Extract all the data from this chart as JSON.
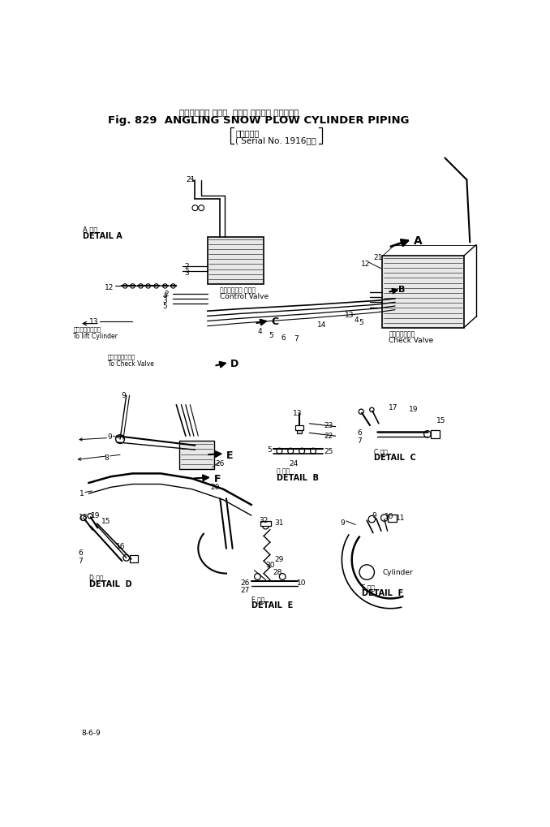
{
  "title_jp": "アングリング スノウ  プラウ シリンダ パイピング",
  "title_en": "Fig. 829  ANGLING SNOW PLOW CYLINDER PIPING",
  "subtitle_jp": "（適用号機",
  "subtitle_en": "( Serial No. 1916～）",
  "page_num": "8-6-9",
  "bg_color": "#ffffff",
  "lc": "#000000",
  "tc": "#000000",
  "figsize": [
    6.78,
    10.2
  ],
  "dpi": 100
}
